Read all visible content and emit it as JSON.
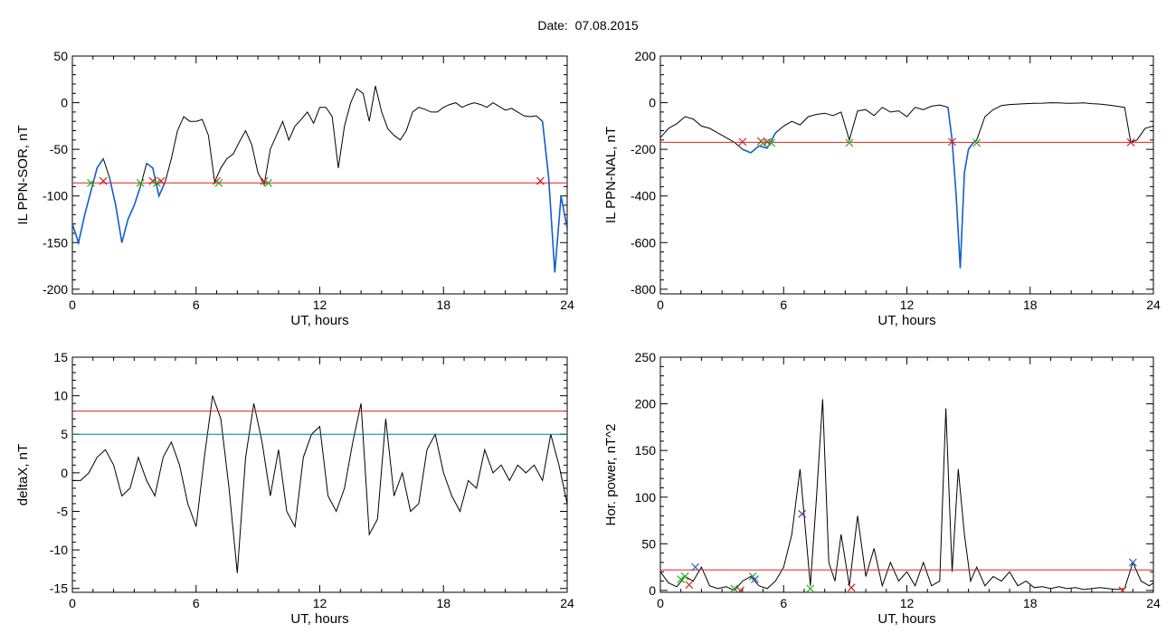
{
  "page": {
    "title": "Date:  07.08.2015"
  },
  "colors": {
    "trace": "#000000",
    "highlight": "#1060d0",
    "threshold": "#e02020",
    "threshold2": "#00808c",
    "marker_green": "#20b020",
    "marker_red": "#d02020",
    "marker_purple": "#7030a0",
    "marker_blue": "#3060d0"
  },
  "chart_data": [
    {
      "id": "il-ppn-sor",
      "type": "line",
      "xlabel": "UT, hours",
      "ylabel": "IL PPN-SOR, nT",
      "xlim": [
        0,
        24
      ],
      "ylim": [
        -205,
        50
      ],
      "xticks": [
        0,
        6,
        12,
        18,
        24
      ],
      "yticks": [
        50,
        0,
        -50,
        -100,
        -150,
        -200
      ],
      "threshold": -86,
      "threshold_color": "red",
      "x": [
        0,
        0.3,
        0.6,
        0.9,
        1.2,
        1.5,
        1.8,
        2.1,
        2.4,
        2.7,
        3.0,
        3.3,
        3.6,
        3.9,
        4.2,
        4.5,
        4.8,
        5.1,
        5.4,
        5.7,
        6.0,
        6.3,
        6.6,
        6.9,
        7.2,
        7.5,
        7.8,
        8.1,
        8.4,
        8.7,
        9.0,
        9.3,
        9.6,
        9.9,
        10.2,
        10.5,
        10.8,
        11.1,
        11.4,
        11.7,
        12.0,
        12.3,
        12.6,
        12.9,
        13.2,
        13.5,
        13.8,
        14.1,
        14.4,
        14.7,
        15.0,
        15.3,
        15.6,
        15.9,
        16.2,
        16.5,
        16.8,
        17.1,
        17.4,
        17.7,
        18.0,
        18.3,
        18.6,
        18.9,
        19.2,
        19.5,
        19.8,
        20.1,
        20.4,
        20.7,
        21.0,
        21.3,
        21.6,
        21.9,
        22.2,
        22.5,
        22.8,
        23.1,
        23.4,
        23.7,
        24.0
      ],
      "y": [
        -130,
        -150,
        -120,
        -95,
        -70,
        -60,
        -80,
        -110,
        -150,
        -125,
        -110,
        -90,
        -65,
        -70,
        -100,
        -85,
        -60,
        -30,
        -15,
        -20,
        -20,
        -18,
        -35,
        -85,
        -70,
        -60,
        -55,
        -42,
        -30,
        -45,
        -75,
        -88,
        -50,
        -35,
        -20,
        -40,
        -25,
        -18,
        -10,
        -22,
        -5,
        -5,
        -15,
        -70,
        -25,
        0,
        15,
        10,
        -20,
        18,
        -10,
        -28,
        -35,
        -40,
        -30,
        -10,
        -5,
        -7,
        -10,
        -10,
        -5,
        -2,
        0,
        -5,
        -2,
        0,
        -2,
        -5,
        0,
        -4,
        -8,
        -6,
        -10,
        -14,
        -15,
        -14,
        -20,
        -80,
        -182,
        -100,
        -135
      ],
      "highlight_segments": [
        [
          0,
          1.6
        ],
        [
          1.8,
          3.3
        ],
        [
          3.6,
          4.6
        ],
        [
          22.8,
          24
        ]
      ],
      "markers": [
        {
          "x": 0.9,
          "y": -86,
          "color": "green"
        },
        {
          "x": 1.5,
          "y": -84,
          "color": "red"
        },
        {
          "x": 3.3,
          "y": -86,
          "color": "green"
        },
        {
          "x": 3.9,
          "y": -84,
          "color": "red"
        },
        {
          "x": 4.1,
          "y": -86,
          "color": "green"
        },
        {
          "x": 4.3,
          "y": -84,
          "color": "red"
        },
        {
          "x": 7.0,
          "y": -84,
          "color": "red"
        },
        {
          "x": 7.1,
          "y": -86,
          "color": "green"
        },
        {
          "x": 9.3,
          "y": -84,
          "color": "red"
        },
        {
          "x": 9.5,
          "y": -86,
          "color": "green"
        },
        {
          "x": 22.7,
          "y": -84,
          "color": "red"
        }
      ]
    },
    {
      "id": "il-ppn-nal",
      "type": "line",
      "xlabel": "UT, hours",
      "ylabel": "IL PPN-NAL, nT",
      "xlim": [
        0,
        24
      ],
      "ylim": [
        -820,
        200
      ],
      "xticks": [
        0,
        6,
        12,
        18,
        24
      ],
      "yticks": [
        200,
        0,
        -200,
        -400,
        -600,
        -800
      ],
      "threshold": -170,
      "threshold_color": "red",
      "x": [
        0,
        0.4,
        0.8,
        1.2,
        1.6,
        2.0,
        2.4,
        2.8,
        3.2,
        3.6,
        4.0,
        4.4,
        4.8,
        5.2,
        5.6,
        6.0,
        6.4,
        6.8,
        7.2,
        7.6,
        8.0,
        8.4,
        8.8,
        9.2,
        9.6,
        10.0,
        10.4,
        10.8,
        11.2,
        11.6,
        12.0,
        12.4,
        12.8,
        13.2,
        13.6,
        14.0,
        14.2,
        14.4,
        14.6,
        14.8,
        15.0,
        15.2,
        15.4,
        15.8,
        16.2,
        16.6,
        17.0,
        17.4,
        17.8,
        18.2,
        18.6,
        19.0,
        19.4,
        19.8,
        20.2,
        20.6,
        21.0,
        21.4,
        21.8,
        22.2,
        22.6,
        22.9,
        23.2,
        23.6,
        24.0
      ],
      "y": [
        -150,
        -110,
        -90,
        -60,
        -70,
        -100,
        -110,
        -130,
        -150,
        -170,
        -200,
        -215,
        -185,
        -195,
        -130,
        -100,
        -80,
        -95,
        -60,
        -50,
        -45,
        -55,
        -40,
        -160,
        -35,
        -30,
        -55,
        -20,
        -40,
        -35,
        -60,
        -20,
        -30,
        -15,
        -10,
        -20,
        -160,
        -400,
        -710,
        -300,
        -200,
        -175,
        -160,
        -60,
        -30,
        -12,
        -8,
        -6,
        -4,
        -3,
        -2,
        0,
        -1,
        -3,
        -2,
        -1,
        -4,
        -6,
        -10,
        -15,
        -20,
        -170,
        -160,
        -110,
        -100
      ],
      "highlight_segments": [
        [
          3.8,
          5.6
        ],
        [
          14.0,
          15.4
        ]
      ],
      "markers": [
        {
          "x": 4.0,
          "y": -168,
          "color": "red"
        },
        {
          "x": 4.9,
          "y": -165,
          "color": "red"
        },
        {
          "x": 5.0,
          "y": -172,
          "color": "green"
        },
        {
          "x": 5.2,
          "y": -168,
          "color": "red"
        },
        {
          "x": 5.4,
          "y": -172,
          "color": "green"
        },
        {
          "x": 9.2,
          "y": -172,
          "color": "green"
        },
        {
          "x": 14.2,
          "y": -168,
          "color": "red"
        },
        {
          "x": 15.4,
          "y": -172,
          "color": "green"
        },
        {
          "x": 22.9,
          "y": -170,
          "color": "red"
        }
      ]
    },
    {
      "id": "deltax",
      "type": "line",
      "xlabel": "UT, hours",
      "ylabel": "deltaX, nT",
      "xlim": [
        0,
        24
      ],
      "ylim": [
        -15.5,
        15
      ],
      "xticks": [
        0,
        6,
        12,
        18,
        24
      ],
      "yticks": [
        15,
        10,
        5,
        0,
        -5,
        -10,
        -15
      ],
      "threshold": 8,
      "threshold_color": "red",
      "threshold2": 5,
      "threshold2_color": "teal",
      "x": [
        0,
        0.4,
        0.8,
        1.2,
        1.6,
        2.0,
        2.4,
        2.8,
        3.2,
        3.6,
        4.0,
        4.4,
        4.8,
        5.2,
        5.6,
        6.0,
        6.4,
        6.8,
        7.2,
        7.6,
        8.0,
        8.4,
        8.8,
        9.2,
        9.6,
        10.0,
        10.4,
        10.8,
        11.2,
        11.6,
        12.0,
        12.4,
        12.8,
        13.2,
        13.6,
        14.0,
        14.4,
        14.8,
        15.2,
        15.6,
        16.0,
        16.4,
        16.8,
        17.2,
        17.6,
        18.0,
        18.4,
        18.8,
        19.2,
        19.6,
        20.0,
        20.4,
        20.8,
        21.2,
        21.6,
        22.0,
        22.4,
        22.8,
        23.2,
        23.6,
        24.0
      ],
      "y": [
        -1,
        -1,
        0,
        2,
        3,
        1,
        -3,
        -2,
        2,
        -1,
        -3,
        2,
        4,
        1,
        -4,
        -7,
        2,
        10,
        7,
        -2,
        -13,
        2,
        9,
        4,
        -3,
        3,
        -5,
        -7,
        2,
        5,
        6,
        -3,
        -5,
        -2,
        4,
        9,
        -8,
        -6,
        7,
        -3,
        0,
        -5,
        -4,
        3,
        5,
        0,
        -3,
        -5,
        -1,
        -2,
        3,
        0,
        1,
        -1,
        1,
        0,
        1,
        -1,
        5,
        1,
        -4
      ],
      "markers": []
    },
    {
      "id": "hor-power",
      "type": "line",
      "xlabel": "UT, hours",
      "ylabel": "Hor. power, nT^2",
      "xlim": [
        0,
        24
      ],
      "ylim": [
        -2,
        250
      ],
      "xticks": [
        0,
        6,
        12,
        18,
        24
      ],
      "yticks": [
        250,
        200,
        150,
        100,
        50,
        0
      ],
      "threshold": 22,
      "threshold_color": "red",
      "x": [
        0,
        0.4,
        0.8,
        1.2,
        1.6,
        2.0,
        2.4,
        2.8,
        3.2,
        3.6,
        4.0,
        4.4,
        4.8,
        5.2,
        5.6,
        6.0,
        6.4,
        6.8,
        7.0,
        7.3,
        7.6,
        7.9,
        8.2,
        8.5,
        8.8,
        9.2,
        9.6,
        10.0,
        10.4,
        10.8,
        11.2,
        11.6,
        12.0,
        12.4,
        12.8,
        13.2,
        13.6,
        13.9,
        14.2,
        14.5,
        14.8,
        15.1,
        15.4,
        15.8,
        16.2,
        16.6,
        17.0,
        17.4,
        17.8,
        18.2,
        18.6,
        19.0,
        19.4,
        19.8,
        20.2,
        20.6,
        21.0,
        21.4,
        21.8,
        22.2,
        22.6,
        23.0,
        23.4,
        23.8,
        24.0
      ],
      "y": [
        20,
        8,
        4,
        15,
        10,
        25,
        5,
        2,
        4,
        0,
        10,
        15,
        5,
        2,
        10,
        25,
        60,
        130,
        80,
        5,
        100,
        205,
        30,
        10,
        60,
        5,
        80,
        15,
        45,
        5,
        30,
        10,
        20,
        5,
        30,
        5,
        10,
        195,
        20,
        130,
        60,
        10,
        25,
        5,
        15,
        10,
        20,
        5,
        10,
        3,
        4,
        2,
        4,
        2,
        3,
        1,
        2,
        3,
        2,
        1,
        2,
        30,
        10,
        5,
        8
      ],
      "markers": [
        {
          "x": 1.0,
          "y": 12,
          "color": "green"
        },
        {
          "x": 1.2,
          "y": 15,
          "color": "green"
        },
        {
          "x": 1.4,
          "y": 6,
          "color": "red"
        },
        {
          "x": 1.7,
          "y": 25,
          "color": "blue"
        },
        {
          "x": 3.6,
          "y": 2,
          "color": "green"
        },
        {
          "x": 3.9,
          "y": 0,
          "color": "red"
        },
        {
          "x": 4.5,
          "y": 15,
          "color": "green"
        },
        {
          "x": 4.6,
          "y": 12,
          "color": "blue"
        },
        {
          "x": 6.9,
          "y": 82,
          "color": "purple"
        },
        {
          "x": 7.3,
          "y": 2,
          "color": "green"
        },
        {
          "x": 9.3,
          "y": 3,
          "color": "red"
        },
        {
          "x": 22.5,
          "y": 0,
          "color": "red"
        },
        {
          "x": 23.0,
          "y": 30,
          "color": "blue"
        }
      ]
    }
  ]
}
